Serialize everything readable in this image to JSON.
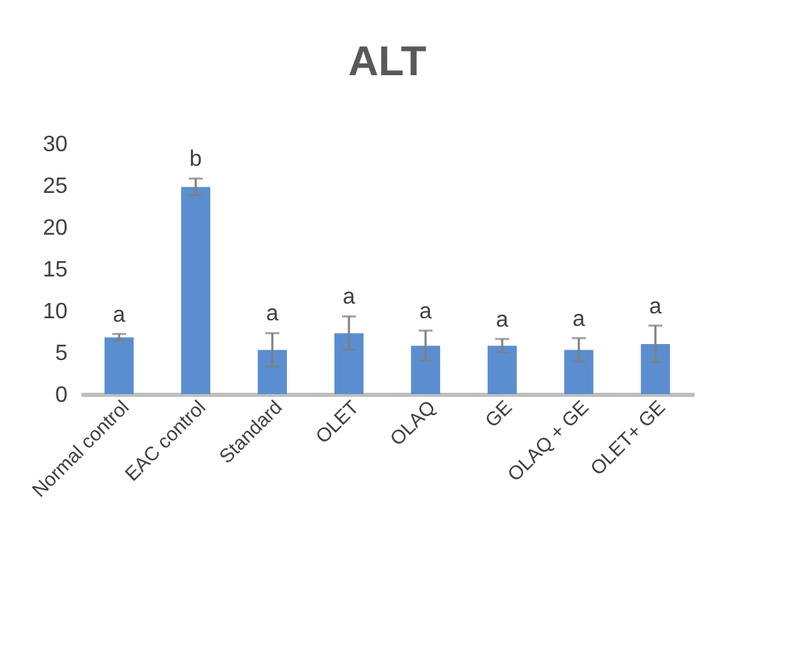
{
  "chart_data": {
    "type": "bar",
    "title": "ALT",
    "categories": [
      "Normal control",
      "EAC control",
      "Standard",
      "OLET",
      "OLAQ",
      "GE",
      "OLAQ + GE",
      "OLET+ GE"
    ],
    "values": [
      6.8,
      24.8,
      5.3,
      7.3,
      5.8,
      5.8,
      5.3,
      6.0
    ],
    "errors": [
      0.4,
      1.0,
      2.0,
      2.0,
      1.8,
      0.8,
      1.4,
      2.2
    ],
    "color": "#5b8ed0",
    "ylim": [
      0,
      30
    ],
    "yticks": [
      0,
      5,
      10,
      15,
      20,
      25,
      30
    ],
    "grid": false,
    "annotations": [
      {
        "text": "a",
        "x": "Normal control",
        "y": 7.2
      },
      {
        "text": "b",
        "x": "EAC control",
        "y": 25.8
      },
      {
        "text": "a",
        "x": "Standard",
        "y": 7.3
      },
      {
        "text": "a",
        "x": "OLET",
        "y": 9.3
      },
      {
        "text": "a",
        "x": "OLAQ",
        "y": 7.6
      },
      {
        "text": "a",
        "x": "GE",
        "y": 6.6
      },
      {
        "text": "a",
        "x": "OLAQ + GE",
        "y": 6.7
      },
      {
        "text": "a",
        "x": "OLET+ GE",
        "y": 8.2
      }
    ]
  }
}
